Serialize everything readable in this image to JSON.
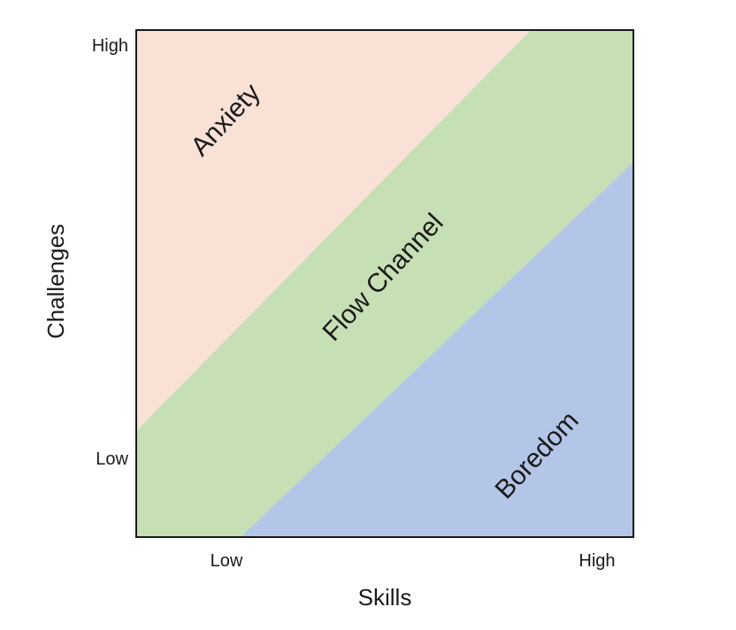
{
  "diagram": {
    "zones": [
      {
        "key": "anxiety",
        "label": "Anxiety",
        "color": "#f9e1d6"
      },
      {
        "key": "flow",
        "label": "Flow Channel",
        "color": "#c6dfb5"
      },
      {
        "key": "boredom",
        "label": "Boredom",
        "color": "#b4c6e7"
      }
    ],
    "x_axis": {
      "title": "Skills",
      "low_label": "Low",
      "high_label": "High"
    },
    "y_axis": {
      "title": "Challenges",
      "low_label": "Low",
      "high_label": "High"
    },
    "frame_color": "#1a1a1a"
  }
}
